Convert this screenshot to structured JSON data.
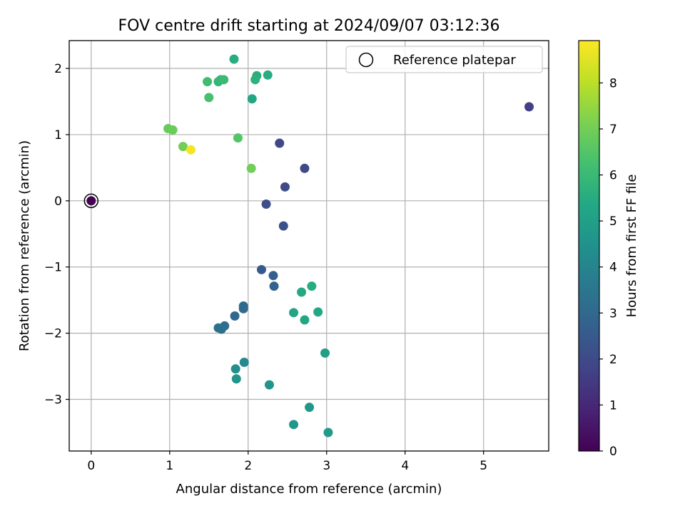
{
  "chart_data": {
    "type": "scatter",
    "title": "FOV centre drift starting at 2024/09/07 03:12:36",
    "xlabel": "Angular distance from reference (arcmin)",
    "ylabel": "Rotation from reference (arcmin)",
    "xlim": [
      -0.28,
      5.83
    ],
    "ylim": [
      -3.78,
      2.42
    ],
    "xticks": [
      0,
      1,
      2,
      3,
      4,
      5
    ],
    "yticks": [
      -3,
      -2,
      -1,
      0,
      1,
      2
    ],
    "xtick_labels": [
      "0",
      "1",
      "2",
      "3",
      "4",
      "5"
    ],
    "ytick_labels": [
      "−3",
      "−2",
      "−1",
      "0",
      "1",
      "2"
    ],
    "grid": true,
    "legend": {
      "placement": "top-right",
      "entries": [
        {
          "label": "Reference platepar",
          "marker": "open-circle"
        }
      ]
    },
    "colorbar": {
      "label": "Hours from first FF file",
      "min": 0,
      "max": 8.92,
      "ticks": [
        0,
        1,
        2,
        3,
        4,
        5,
        6,
        7,
        8
      ],
      "tick_labels": [
        "0",
        "1",
        "2",
        "3",
        "4",
        "5",
        "6",
        "7",
        "8"
      ],
      "colormap": [
        "#440154",
        "#482475",
        "#414487",
        "#355f8d",
        "#2a788e",
        "#21918c",
        "#22a884",
        "#44bf70",
        "#7ad151",
        "#bddf26",
        "#fde725"
      ]
    },
    "reference_point": {
      "x": 0,
      "y": 0
    },
    "points": [
      {
        "x": 0.0,
        "y": 0.0,
        "h": 0.0
      },
      {
        "x": 5.58,
        "y": 1.42,
        "h": 1.7
      },
      {
        "x": 2.4,
        "y": 0.87,
        "h": 1.9
      },
      {
        "x": 2.72,
        "y": 0.49,
        "h": 2.0
      },
      {
        "x": 2.47,
        "y": 0.21,
        "h": 2.0
      },
      {
        "x": 2.23,
        "y": -0.05,
        "h": 2.1
      },
      {
        "x": 2.45,
        "y": -0.38,
        "h": 2.2
      },
      {
        "x": 2.17,
        "y": -1.04,
        "h": 2.5
      },
      {
        "x": 2.32,
        "y": -1.13,
        "h": 2.7
      },
      {
        "x": 2.33,
        "y": -1.29,
        "h": 2.8
      },
      {
        "x": 1.83,
        "y": -1.74,
        "h": 3.0
      },
      {
        "x": 1.94,
        "y": -1.59,
        "h": 3.1
      },
      {
        "x": 1.94,
        "y": -1.63,
        "h": 3.1
      },
      {
        "x": 1.7,
        "y": -1.89,
        "h": 3.2
      },
      {
        "x": 1.62,
        "y": -1.92,
        "h": 3.3
      },
      {
        "x": 1.66,
        "y": -1.94,
        "h": 3.3
      },
      {
        "x": 1.95,
        "y": -2.44,
        "h": 4.2
      },
      {
        "x": 1.84,
        "y": -2.54,
        "h": 4.4
      },
      {
        "x": 1.85,
        "y": -2.69,
        "h": 4.6
      },
      {
        "x": 2.27,
        "y": -2.78,
        "h": 4.6
      },
      {
        "x": 2.78,
        "y": -3.12,
        "h": 4.7
      },
      {
        "x": 2.58,
        "y": -3.38,
        "h": 4.7
      },
      {
        "x": 3.02,
        "y": -3.5,
        "h": 4.8
      },
      {
        "x": 2.98,
        "y": -2.3,
        "h": 5.0
      },
      {
        "x": 2.58,
        "y": -1.69,
        "h": 5.2
      },
      {
        "x": 2.72,
        "y": -1.8,
        "h": 5.3
      },
      {
        "x": 2.89,
        "y": -1.68,
        "h": 5.3
      },
      {
        "x": 2.68,
        "y": -1.38,
        "h": 5.4
      },
      {
        "x": 2.81,
        "y": -1.29,
        "h": 5.5
      },
      {
        "x": 2.05,
        "y": 1.54,
        "h": 5.3
      },
      {
        "x": 1.82,
        "y": 2.14,
        "h": 5.5
      },
      {
        "x": 2.25,
        "y": 1.9,
        "h": 5.5
      },
      {
        "x": 2.11,
        "y": 1.89,
        "h": 5.6
      },
      {
        "x": 2.09,
        "y": 1.83,
        "h": 5.7
      },
      {
        "x": 1.62,
        "y": 1.8,
        "h": 5.8
      },
      {
        "x": 1.65,
        "y": 1.83,
        "h": 5.9
      },
      {
        "x": 1.69,
        "y": 1.83,
        "h": 6.0
      },
      {
        "x": 1.48,
        "y": 1.8,
        "h": 6.1
      },
      {
        "x": 1.5,
        "y": 1.56,
        "h": 6.3
      },
      {
        "x": 1.87,
        "y": 0.95,
        "h": 6.5
      },
      {
        "x": 0.98,
        "y": 1.09,
        "h": 6.8
      },
      {
        "x": 1.04,
        "y": 1.07,
        "h": 6.9
      },
      {
        "x": 1.17,
        "y": 0.82,
        "h": 7.0
      },
      {
        "x": 2.04,
        "y": 0.49,
        "h": 7.0
      },
      {
        "x": 1.27,
        "y": 0.77,
        "h": 8.8
      }
    ]
  }
}
